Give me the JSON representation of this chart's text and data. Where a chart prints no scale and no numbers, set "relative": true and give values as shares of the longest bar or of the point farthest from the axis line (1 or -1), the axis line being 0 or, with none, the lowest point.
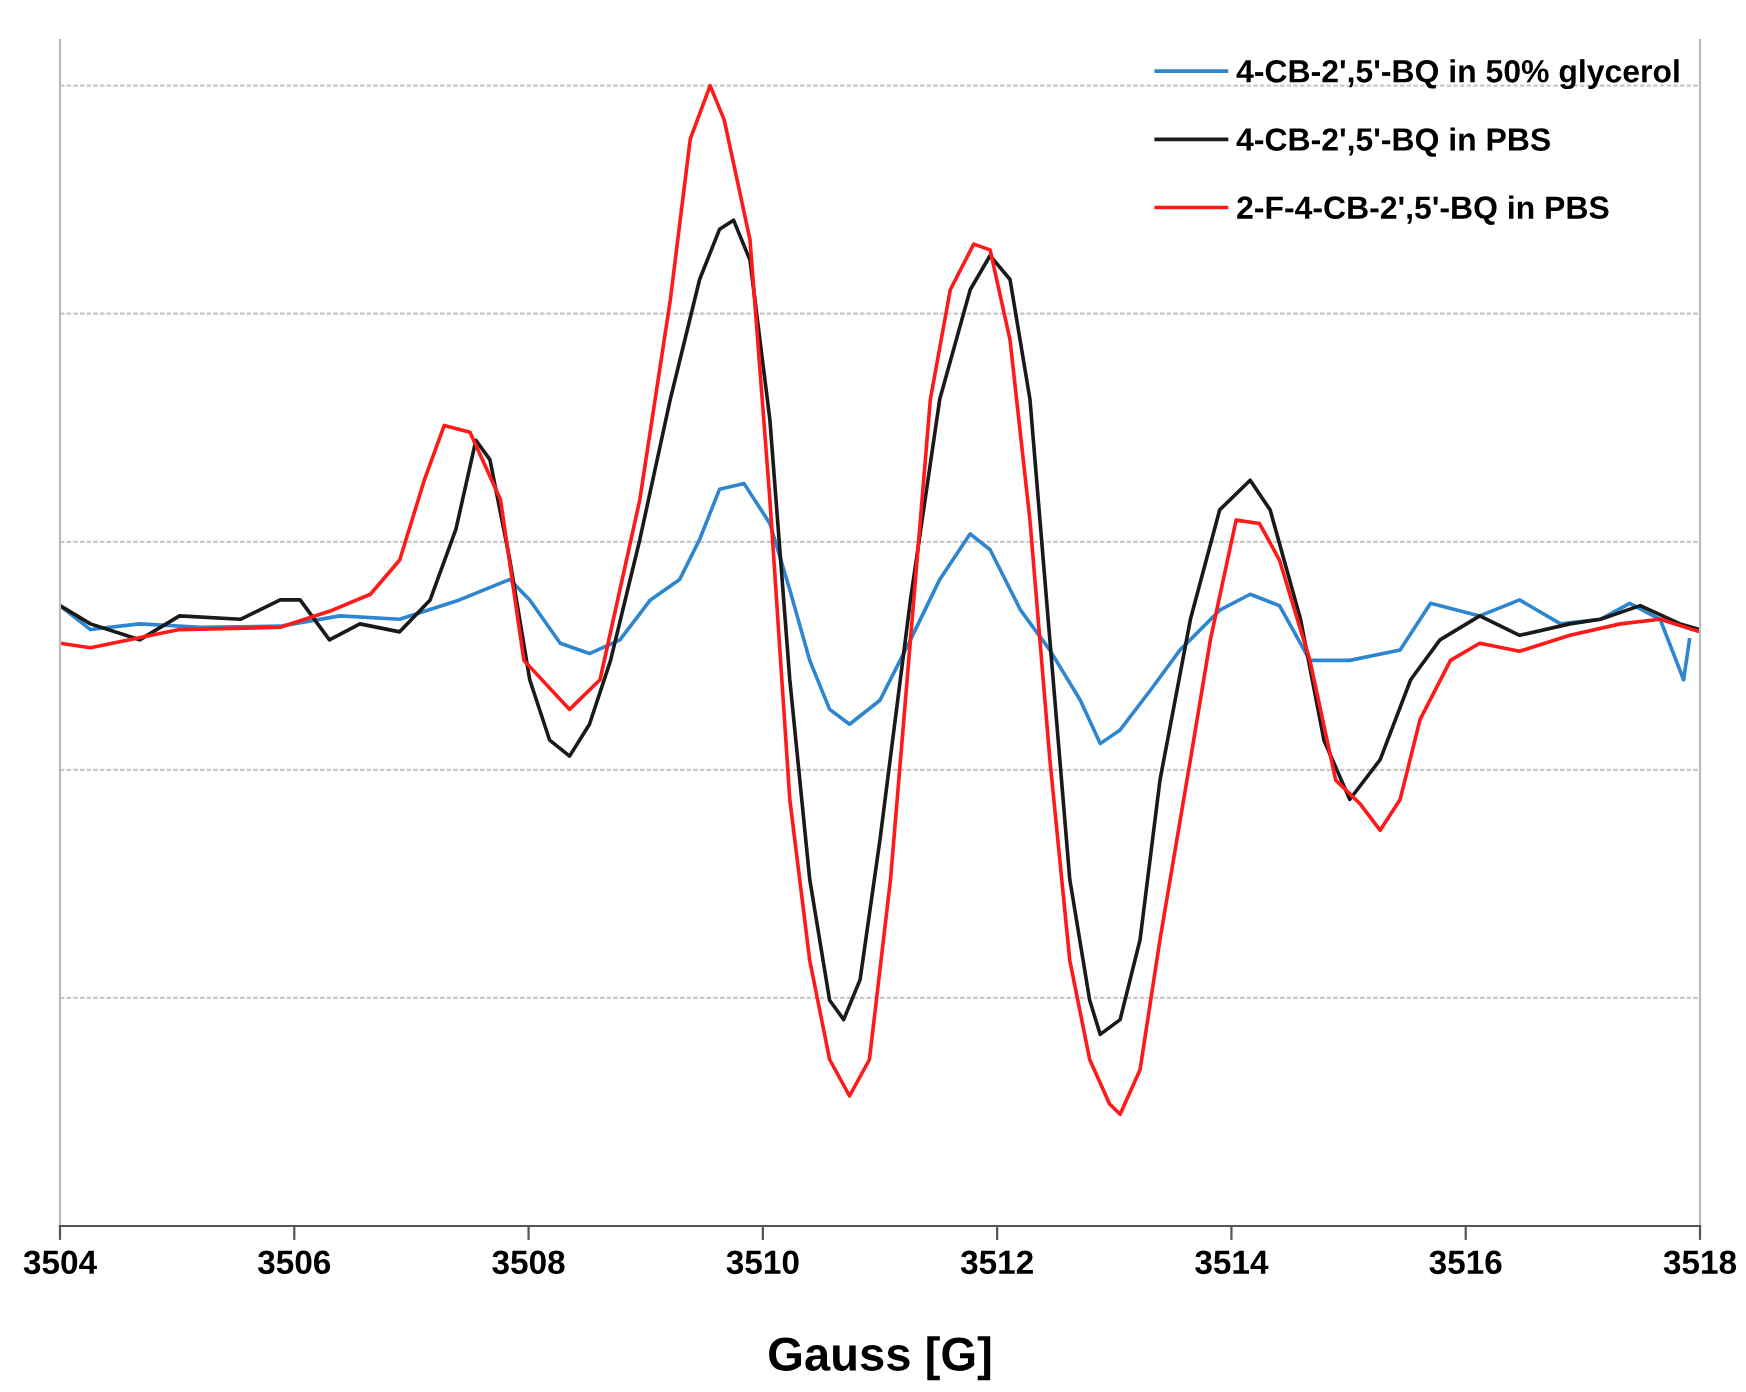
{
  "chart_data": {
    "type": "line",
    "relative": true,
    "xlabel": "Gauss [G]",
    "xlim": [
      3504,
      3518
    ],
    "xticks": [
      3504,
      3506,
      3508,
      3510,
      3512,
      3514,
      3516,
      3518
    ],
    "grid": "y",
    "legend": "top right",
    "tick_labels": "x",
    "marker": "none",
    "line_style": "solid",
    "series": [
      {
        "name": "4-CB-2',5'-BQ in 50% glycerol",
        "color": "#2f86d0",
        "x": [
          3504.0,
          3504.26,
          3504.68,
          3505.2,
          3505.88,
          3506.39,
          3506.9,
          3507.41,
          3507.84,
          3508.01,
          3508.27,
          3508.52,
          3508.78,
          3509.04,
          3509.29,
          3509.46,
          3509.63,
          3509.84,
          3510.06,
          3510.23,
          3510.4,
          3510.57,
          3510.74,
          3511.0,
          3511.26,
          3511.51,
          3511.77,
          3511.94,
          3512.2,
          3512.45,
          3512.71,
          3512.88,
          3513.05,
          3513.31,
          3513.56,
          3513.9,
          3514.16,
          3514.41,
          3514.67,
          3515.01,
          3515.44,
          3515.7,
          3516.12,
          3516.46,
          3516.81,
          3517.15,
          3517.4,
          3517.66,
          3517.86,
          3517.91
        ],
        "values": [
          0.544,
          0.523,
          0.528,
          0.525,
          0.526,
          0.535,
          0.532,
          0.549,
          0.567,
          0.549,
          0.511,
          0.502,
          0.514,
          0.549,
          0.567,
          0.602,
          0.646,
          0.651,
          0.616,
          0.558,
          0.496,
          0.453,
          0.44,
          0.461,
          0.514,
          0.567,
          0.607,
          0.593,
          0.54,
          0.505,
          0.461,
          0.423,
          0.435,
          0.47,
          0.505,
          0.54,
          0.554,
          0.544,
          0.496,
          0.496,
          0.505,
          0.546,
          0.535,
          0.549,
          0.528,
          0.532,
          0.546,
          0.532,
          0.479,
          0.514
        ]
      },
      {
        "name": "4-CB-2',5'-BQ in PBS",
        "color": "#1a1a1a",
        "x": [
          3504.0,
          3504.26,
          3504.68,
          3505.02,
          3505.54,
          3505.88,
          3506.05,
          3506.3,
          3506.56,
          3506.9,
          3507.16,
          3507.38,
          3507.55,
          3507.67,
          3507.84,
          3508.01,
          3508.18,
          3508.35,
          3508.52,
          3508.7,
          3508.95,
          3509.21,
          3509.46,
          3509.63,
          3509.75,
          3509.89,
          3510.06,
          3510.23,
          3510.4,
          3510.57,
          3510.69,
          3510.83,
          3511.0,
          3511.26,
          3511.51,
          3511.77,
          3511.94,
          3512.11,
          3512.28,
          3512.45,
          3512.62,
          3512.79,
          3512.88,
          3513.05,
          3513.22,
          3513.39,
          3513.65,
          3513.9,
          3514.16,
          3514.33,
          3514.59,
          3514.79,
          3515.01,
          3515.27,
          3515.53,
          3515.78,
          3516.12,
          3516.46,
          3516.89,
          3517.15,
          3517.49,
          3517.83,
          3518.0
        ],
        "values": [
          0.544,
          0.528,
          0.514,
          0.535,
          0.532,
          0.549,
          0.549,
          0.514,
          0.528,
          0.521,
          0.549,
          0.611,
          0.689,
          0.672,
          0.584,
          0.479,
          0.426,
          0.412,
          0.44,
          0.496,
          0.602,
          0.725,
          0.83,
          0.874,
          0.882,
          0.847,
          0.707,
          0.479,
          0.304,
          0.198,
          0.181,
          0.216,
          0.339,
          0.549,
          0.725,
          0.821,
          0.851,
          0.83,
          0.725,
          0.514,
          0.304,
          0.198,
          0.168,
          0.181,
          0.251,
          0.391,
          0.532,
          0.628,
          0.654,
          0.628,
          0.532,
          0.426,
          0.374,
          0.409,
          0.479,
          0.514,
          0.535,
          0.518,
          0.528,
          0.532,
          0.544,
          0.528,
          0.523
        ]
      },
      {
        "name": "2-F-4-CB-2',5'-BQ in PBS",
        "color": "#ff1a1a",
        "x": [
          3504.0,
          3504.26,
          3505.02,
          3505.88,
          3506.3,
          3506.65,
          3506.9,
          3507.11,
          3507.28,
          3507.5,
          3507.76,
          3507.96,
          3508.35,
          3508.61,
          3508.95,
          3509.21,
          3509.38,
          3509.55,
          3509.67,
          3509.89,
          3510.06,
          3510.23,
          3510.4,
          3510.57,
          3510.74,
          3510.91,
          3511.09,
          3511.26,
          3511.43,
          3511.6,
          3511.8,
          3511.94,
          3512.11,
          3512.28,
          3512.45,
          3512.62,
          3512.79,
          3512.96,
          3513.05,
          3513.22,
          3513.39,
          3513.65,
          3513.82,
          3514.04,
          3514.24,
          3514.41,
          3514.67,
          3514.89,
          3515.1,
          3515.27,
          3515.44,
          3515.61,
          3515.87,
          3516.12,
          3516.46,
          3516.89,
          3517.32,
          3517.66,
          3518.0
        ],
        "values": [
          0.511,
          0.507,
          0.523,
          0.525,
          0.539,
          0.554,
          0.584,
          0.654,
          0.702,
          0.696,
          0.637,
          0.496,
          0.453,
          0.479,
          0.637,
          0.812,
          0.953,
          1.0,
          0.97,
          0.865,
          0.637,
          0.374,
          0.233,
          0.146,
          0.114,
          0.146,
          0.304,
          0.514,
          0.725,
          0.821,
          0.861,
          0.856,
          0.777,
          0.619,
          0.409,
          0.233,
          0.146,
          0.107,
          0.098,
          0.137,
          0.251,
          0.409,
          0.514,
          0.619,
          0.616,
          0.584,
          0.496,
          0.391,
          0.37,
          0.347,
          0.374,
          0.444,
          0.496,
          0.511,
          0.504,
          0.518,
          0.528,
          0.532,
          0.521
        ]
      }
    ]
  }
}
